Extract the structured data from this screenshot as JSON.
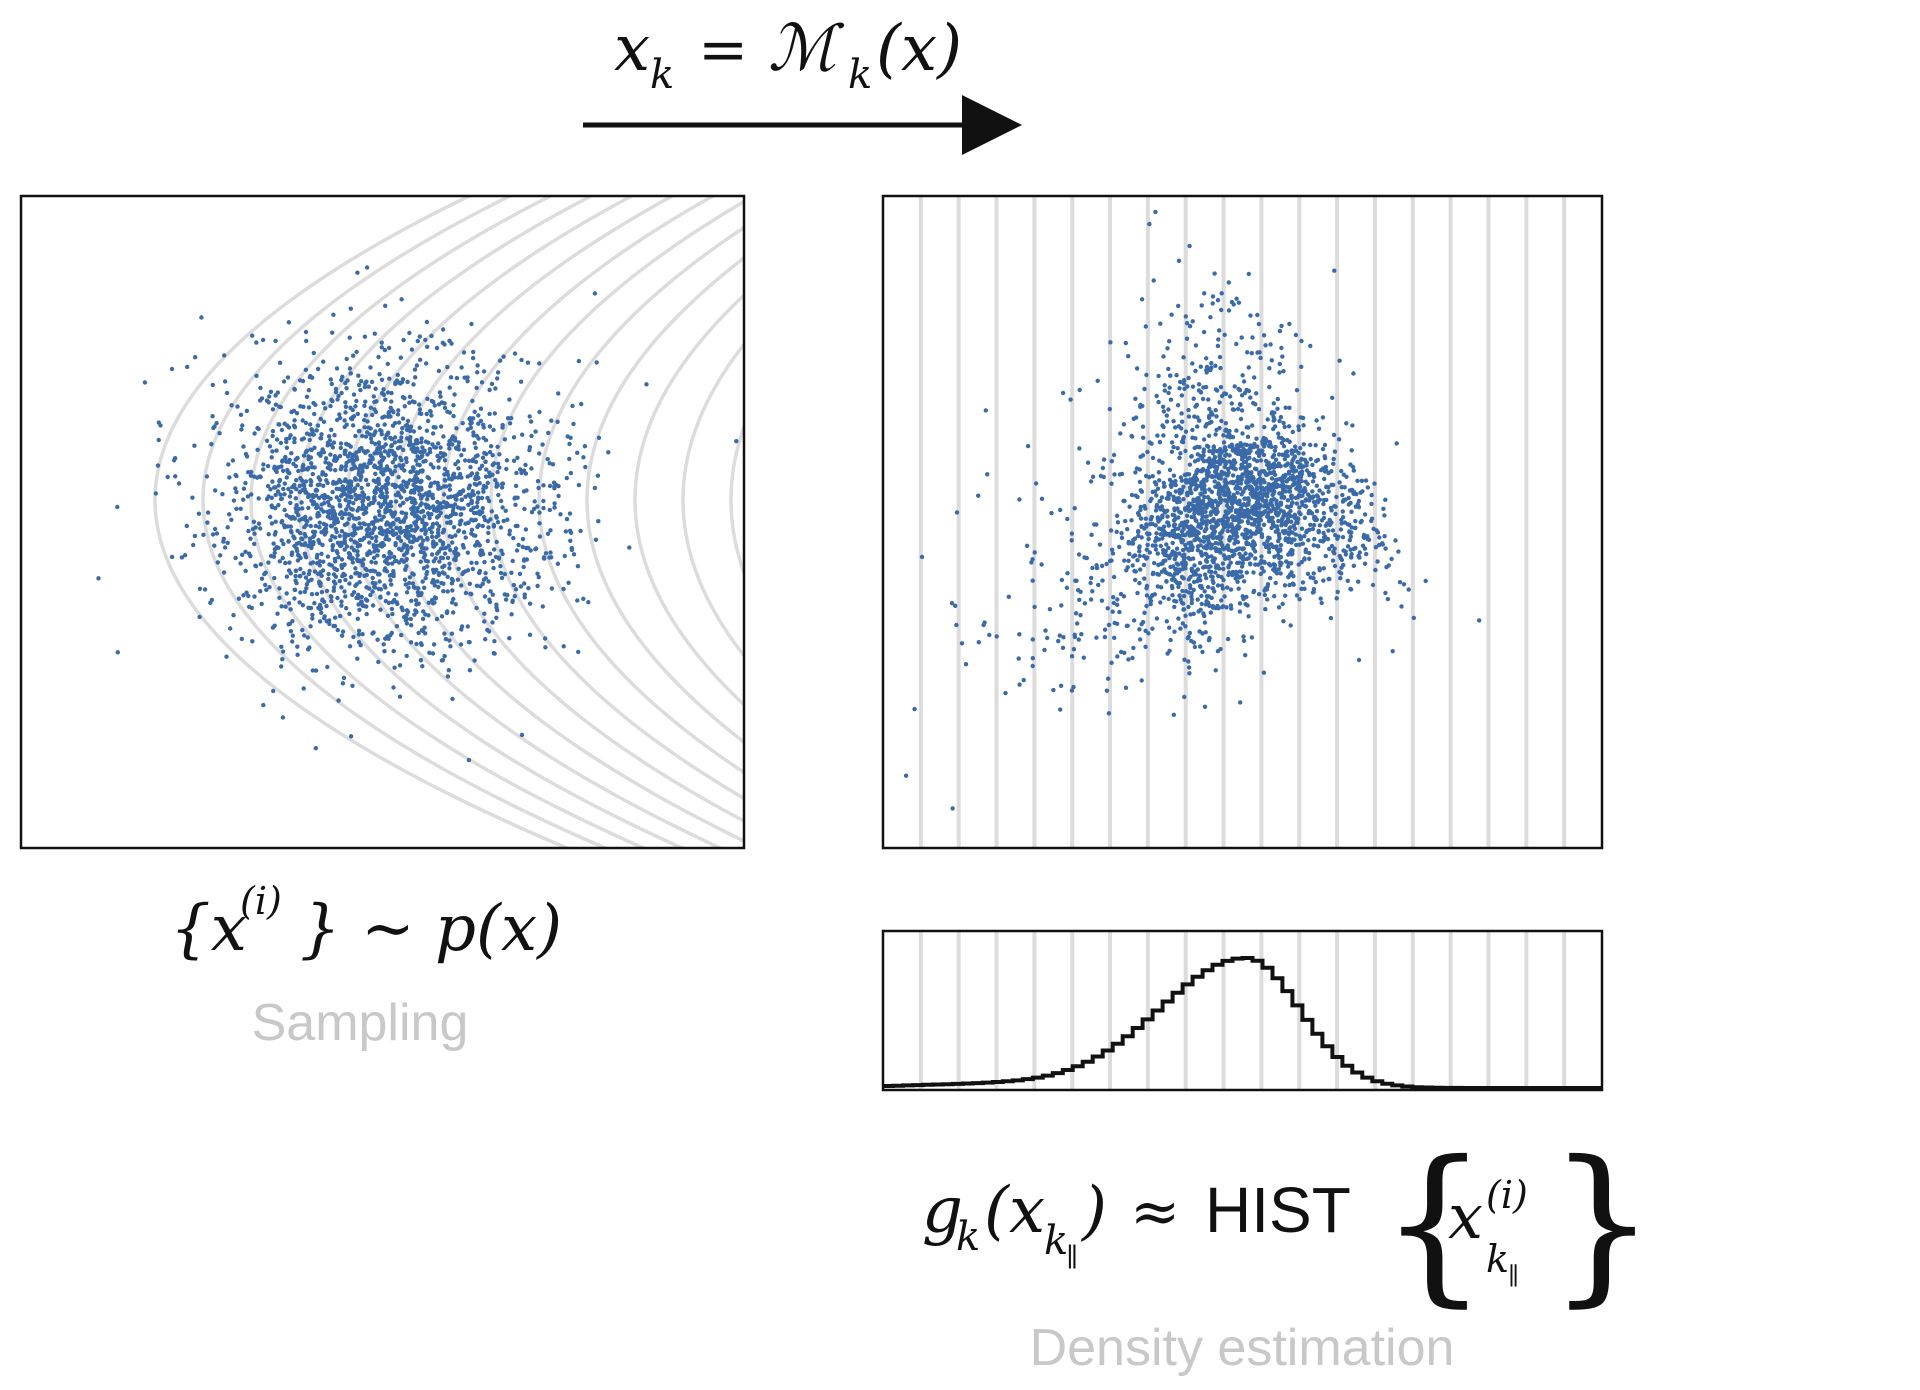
{
  "title": {
    "lhs": "x",
    "lhs_sub": "k",
    "eq": "=",
    "map": "ℳ",
    "map_sub": "k",
    "arg": "(x)"
  },
  "left": {
    "formula_open": "{x",
    "formula_sup": "(i)",
    "formula_close": "} ∼ p(x)",
    "caption": "Sampling"
  },
  "right": {
    "g": "g",
    "g_sub": "k",
    "paren_open": "(x",
    "x_sub": "k",
    "x_subsub": "∥",
    "paren_close": ")",
    "approx": "≈",
    "hist_label": "HIST",
    "brace_open": "{",
    "brace_close": "}",
    "set_x": "x",
    "set_sup": "(i)",
    "set_sub": "k",
    "set_subsub": "∥",
    "caption": "Density estimation"
  },
  "colors": {
    "points": "#3b6aa8",
    "contours": "#dcdcdc",
    "frame": "#111111",
    "caption": "#c8c8c8"
  },
  "samples": {
    "count": 2400,
    "seed": 7
  },
  "contour_count": 14,
  "slice_count": 18,
  "histogram_bins": 72
}
